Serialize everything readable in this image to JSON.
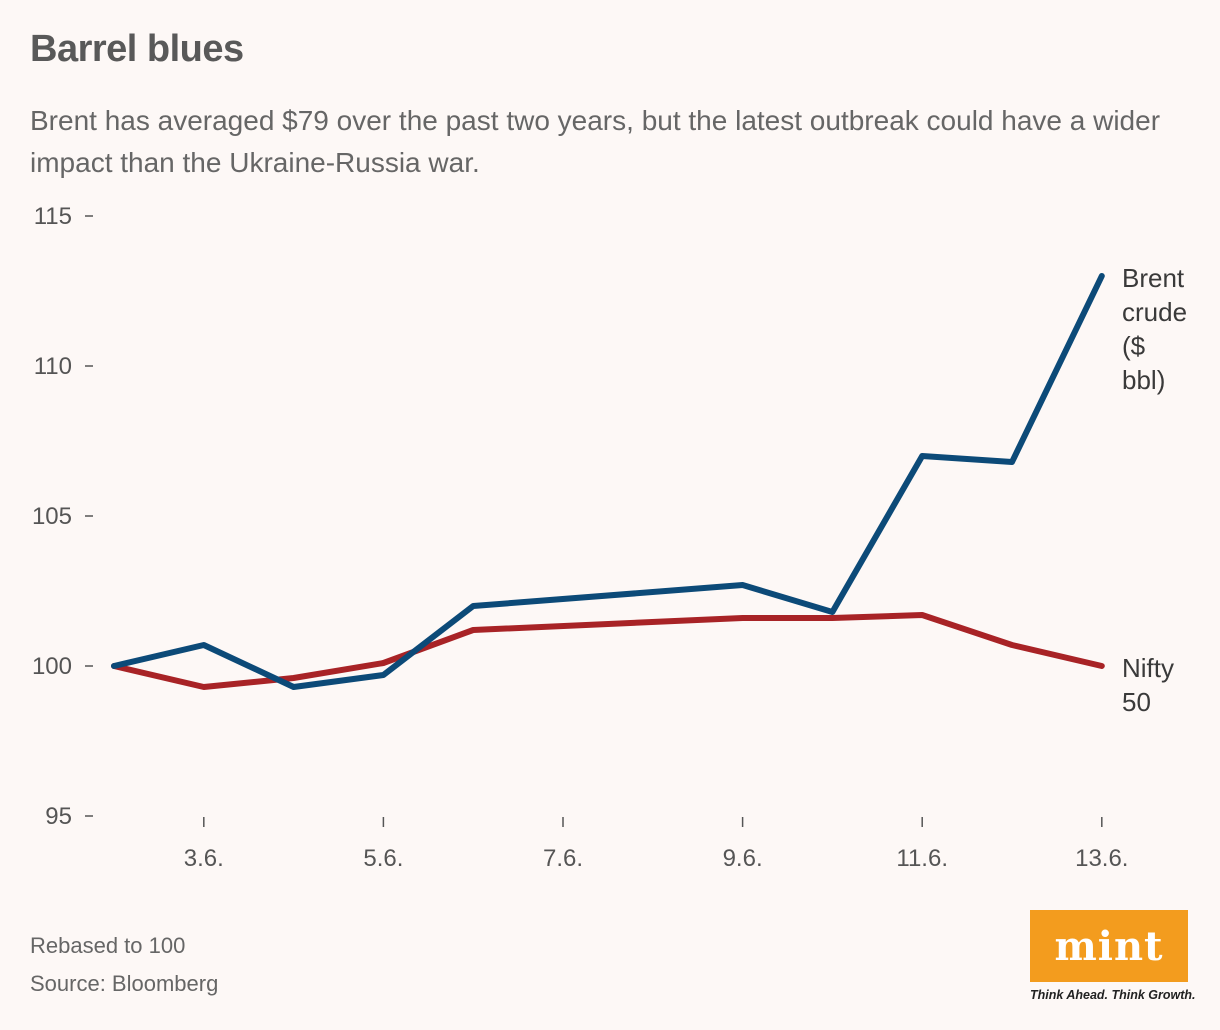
{
  "header": {
    "title": "Barrel blues",
    "subtitle": "Brent has averaged $79 over the past two years, but the latest outbreak could have a wider impact than the Ukraine-Russia war."
  },
  "chart_data": {
    "type": "line",
    "x": [
      "2.6.",
      "3.6.",
      "4.6.",
      "5.6.",
      "6.6.",
      "9.6.",
      "10.6.",
      "11.6.",
      "12.6.",
      "13.6."
    ],
    "x_positions": [
      2,
      3,
      4,
      5,
      6,
      9,
      10,
      11,
      12,
      13
    ],
    "x_ticks": [
      {
        "pos": 3,
        "label": "3.6."
      },
      {
        "pos": 5,
        "label": "5.6."
      },
      {
        "pos": 7,
        "label": "7.6."
      },
      {
        "pos": 9,
        "label": "9.6."
      },
      {
        "pos": 11,
        "label": "11.6."
      },
      {
        "pos": 13,
        "label": "13.6."
      }
    ],
    "y_ticks": [
      95,
      100,
      105,
      110,
      115
    ],
    "ylim": [
      95,
      115
    ],
    "series": [
      {
        "name": "Brent crude ($ bbl)",
        "label_lines": [
          "Brent",
          "crude",
          "($",
          "bbl)"
        ],
        "color": "#0c4a78",
        "values": [
          100.0,
          100.7,
          99.3,
          99.7,
          102.0,
          102.7,
          101.8,
          107.0,
          106.8,
          113.0
        ]
      },
      {
        "name": "Nifty 50",
        "label_lines": [
          "Nifty",
          "50"
        ],
        "color": "#a82326",
        "values": [
          100.0,
          99.3,
          99.6,
          100.1,
          101.2,
          101.6,
          101.6,
          101.7,
          100.7,
          100.0
        ]
      }
    ],
    "grid": false,
    "legend": "direct labels at line ends"
  },
  "footer": {
    "note": "Rebased to 100",
    "source": "Source: Bloomberg",
    "logo": "mint",
    "tagline": "Think Ahead. Think Growth."
  }
}
